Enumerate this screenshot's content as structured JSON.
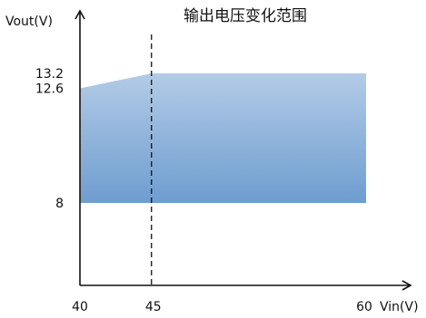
{
  "chart_data": {
    "type": "area",
    "title": "输出电压变化范围",
    "xlabel": "Vin(V)",
    "ylabel": "Vout(V)",
    "x_ticks": [
      "40",
      "45",
      "60"
    ],
    "y_ticks": [
      "13.2",
      "12.6",
      "8"
    ],
    "xlim": [
      40,
      60
    ],
    "ylim": [
      5,
      15
    ],
    "region": {
      "upper": [
        {
          "x": 40,
          "y": 12.6
        },
        {
          "x": 45,
          "y": 13.2
        },
        {
          "x": 60,
          "y": 13.2
        }
      ],
      "lower": [
        {
          "x": 40,
          "y": 8
        },
        {
          "x": 60,
          "y": 8
        }
      ]
    },
    "reference_line": {
      "x": 45,
      "style": "dashed"
    },
    "grid": false,
    "colors": {
      "fill_top": "#b3cbe6",
      "fill_bottom": "#6e9dd0",
      "axis": "#111111",
      "reference_line": "#111111"
    }
  }
}
